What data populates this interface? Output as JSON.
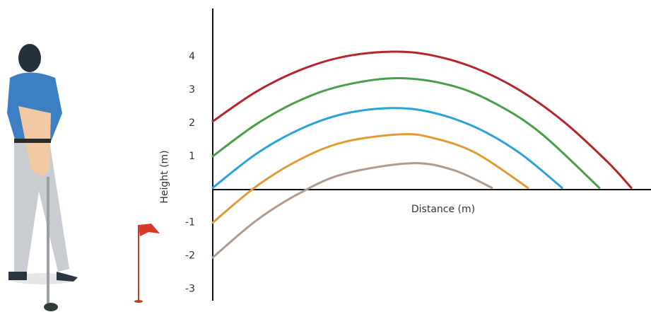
{
  "chart_data": {
    "type": "line",
    "y_label": "Height (m)",
    "x_label": "Distance (m)",
    "xlim": [
      0,
      100
    ],
    "ylim": [
      -3.35,
      5.45
    ],
    "yticks": [
      4,
      3,
      2,
      1,
      -1,
      -2,
      -3
    ],
    "series": [
      {
        "color": "#b5252b",
        "x": [
          0,
          10,
          20,
          30,
          41,
          50,
          60,
          70,
          80,
          90,
          95.5
        ],
        "values": [
          2.05,
          2.95,
          3.6,
          4.0,
          4.15,
          4.04,
          3.65,
          2.99,
          2.05,
          0.84,
          0.05
        ]
      },
      {
        "color": "#4a9e4a",
        "x": [
          0,
          10,
          20,
          30,
          42.6,
          55,
          65,
          75,
          88.2
        ],
        "values": [
          1.0,
          1.97,
          2.69,
          3.14,
          3.35,
          3.11,
          2.55,
          1.68,
          0.05
        ]
      },
      {
        "color": "#2aa4d8",
        "x": [
          0,
          10,
          20,
          30,
          41,
          50,
          60,
          70,
          79.7
        ],
        "values": [
          0.05,
          1.08,
          1.82,
          2.28,
          2.45,
          2.32,
          1.87,
          1.1,
          0.05
        ]
      },
      {
        "color": "#e29a37",
        "x": [
          0,
          10,
          20,
          30,
          42.7,
          50,
          60,
          71.9
        ],
        "values": [
          -1.0,
          0.1,
          0.91,
          1.43,
          1.66,
          1.56,
          1.1,
          0.05
        ]
      },
      {
        "color": "#b09a8e",
        "x": [
          0,
          10,
          20,
          30,
          45.3,
          55,
          63.7
        ],
        "values": [
          -2.05,
          -0.93,
          -0.1,
          0.47,
          0.79,
          0.58,
          0.05
        ]
      }
    ]
  }
}
